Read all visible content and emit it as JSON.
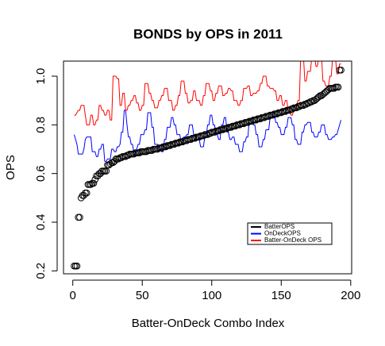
{
  "chart_data": {
    "type": "scatter",
    "title": "BONDS by OPS in 2011",
    "x_label": "Batter-OnDeck Combo Index",
    "y_label": "OPS",
    "xlim": [
      -6.68,
      200.68
    ],
    "ylim": [
      0.188,
      1.062
    ],
    "xticks": [
      0,
      50,
      100,
      150,
      200
    ],
    "yticks": [
      0.2,
      0.4,
      0.6,
      0.8,
      {
        "value": 1,
        "label": "1.0"
      }
    ],
    "legend": "bottomright",
    "x": [
      1,
      2,
      3,
      4,
      5,
      6,
      7,
      8,
      9,
      10,
      11,
      12,
      13,
      14,
      15,
      16,
      17,
      18,
      19,
      20,
      21,
      22,
      23,
      24,
      25,
      26,
      27,
      28,
      29,
      30,
      31,
      32,
      33,
      34,
      35,
      36,
      37,
      38,
      39,
      40,
      41,
      42,
      43,
      44,
      45,
      46,
      47,
      48,
      49,
      50,
      51,
      52,
      53,
      54,
      55,
      56,
      57,
      58,
      59,
      60,
      61,
      62,
      63,
      64,
      65,
      66,
      67,
      68,
      69,
      70,
      71,
      72,
      73,
      74,
      75,
      76,
      77,
      78,
      79,
      80,
      81,
      82,
      83,
      84,
      85,
      86,
      87,
      88,
      89,
      90,
      91,
      92,
      93,
      94,
      95,
      96,
      97,
      98,
      99,
      100,
      101,
      102,
      103,
      104,
      105,
      106,
      107,
      108,
      109,
      110,
      111,
      112,
      113,
      114,
      115,
      116,
      117,
      118,
      119,
      120,
      121,
      122,
      123,
      124,
      125,
      126,
      127,
      128,
      129,
      130,
      131,
      132,
      133,
      134,
      135,
      136,
      137,
      138,
      139,
      140,
      141,
      142,
      143,
      144,
      145,
      146,
      147,
      148,
      149,
      150,
      151,
      152,
      153,
      154,
      155,
      156,
      157,
      158,
      159,
      160,
      161,
      162,
      163,
      164,
      165,
      166,
      167,
      168,
      169,
      170,
      171,
      172,
      173,
      174,
      175,
      176,
      177,
      178,
      179,
      180,
      181,
      182,
      183,
      184,
      185,
      186,
      187,
      188,
      189,
      190,
      191,
      192,
      193
    ],
    "series": [
      {
        "name": "BatterOPS",
        "color": "#000000",
        "kind": "points",
        "values": [
          0.22,
          0.22,
          0.22,
          0.42,
          0.42,
          0.5,
          0.51,
          0.51,
          0.52,
          0.52,
          0.555,
          0.555,
          0.555,
          0.56,
          0.56,
          0.575,
          0.59,
          0.59,
          0.6,
          0.6,
          0.61,
          0.61,
          0.61,
          0.61,
          0.635,
          0.635,
          0.64,
          0.645,
          0.645,
          0.65,
          0.66,
          0.66,
          0.66,
          0.665,
          0.665,
          0.67,
          0.67,
          0.67,
          0.675,
          0.675,
          0.68,
          0.68,
          0.68,
          0.68,
          0.685,
          0.685,
          0.685,
          0.685,
          0.69,
          0.69,
          0.69,
          0.69,
          0.69,
          0.695,
          0.695,
          0.695,
          0.695,
          0.7,
          0.7,
          0.7,
          0.7,
          0.705,
          0.705,
          0.705,
          0.71,
          0.71,
          0.71,
          0.715,
          0.715,
          0.715,
          0.72,
          0.72,
          0.72,
          0.725,
          0.725,
          0.725,
          0.73,
          0.73,
          0.73,
          0.735,
          0.735,
          0.735,
          0.74,
          0.74,
          0.74,
          0.745,
          0.745,
          0.745,
          0.75,
          0.75,
          0.75,
          0.755,
          0.755,
          0.755,
          0.76,
          0.76,
          0.76,
          0.765,
          0.765,
          0.77,
          0.77,
          0.77,
          0.775,
          0.775,
          0.775,
          0.78,
          0.78,
          0.78,
          0.785,
          0.785,
          0.785,
          0.79,
          0.79,
          0.79,
          0.795,
          0.795,
          0.795,
          0.8,
          0.8,
          0.8,
          0.805,
          0.805,
          0.805,
          0.81,
          0.81,
          0.81,
          0.815,
          0.815,
          0.815,
          0.82,
          0.82,
          0.82,
          0.825,
          0.825,
          0.825,
          0.83,
          0.83,
          0.83,
          0.835,
          0.835,
          0.835,
          0.84,
          0.84,
          0.84,
          0.845,
          0.845,
          0.845,
          0.85,
          0.85,
          0.85,
          0.855,
          0.855,
          0.855,
          0.86,
          0.86,
          0.86,
          0.865,
          0.865,
          0.87,
          0.87,
          0.87,
          0.875,
          0.875,
          0.88,
          0.88,
          0.88,
          0.885,
          0.885,
          0.89,
          0.89,
          0.895,
          0.895,
          0.9,
          0.9,
          0.905,
          0.91,
          0.915,
          0.92,
          0.92,
          0.925,
          0.93,
          0.935,
          0.94,
          0.945,
          0.95,
          0.95,
          0.95,
          0.95,
          0.955,
          0.955,
          0.955,
          1.025,
          1.025
        ]
      },
      {
        "name": "OnDeckOPS",
        "color": "#0000ff",
        "kind": "line",
        "values": [
          0.76,
          0.74,
          0.72,
          0.68,
          0.68,
          0.68,
          0.68,
          0.7,
          0.74,
          0.75,
          0.75,
          0.75,
          0.75,
          0.69,
          0.69,
          0.69,
          0.67,
          0.67,
          0.7,
          0.7,
          0.72,
          0.72,
          0.65,
          0.65,
          0.66,
          0.66,
          0.66,
          0.7,
          0.7,
          0.69,
          0.69,
          0.71,
          0.71,
          0.72,
          0.77,
          0.77,
          0.86,
          0.86,
          0.8,
          0.75,
          0.75,
          0.72,
          0.72,
          0.68,
          0.68,
          0.7,
          0.72,
          0.72,
          0.76,
          0.76,
          0.76,
          0.78,
          0.78,
          0.85,
          0.85,
          0.85,
          0.79,
          0.79,
          0.72,
          0.72,
          0.72,
          0.7,
          0.7,
          0.69,
          0.69,
          0.74,
          0.74,
          0.79,
          0.79,
          0.79,
          0.83,
          0.83,
          0.8,
          0.8,
          0.76,
          0.76,
          0.76,
          0.73,
          0.73,
          0.75,
          0.75,
          0.76,
          0.76,
          0.8,
          0.8,
          0.8,
          0.76,
          0.76,
          0.74,
          0.74,
          0.74,
          0.71,
          0.71,
          0.71,
          0.75,
          0.75,
          0.8,
          0.8,
          0.84,
          0.84,
          0.8,
          0.8,
          0.76,
          0.76,
          0.74,
          0.74,
          0.8,
          0.8,
          0.83,
          0.83,
          0.77,
          0.77,
          0.74,
          0.74,
          0.75,
          0.75,
          0.72,
          0.72,
          0.72,
          0.69,
          0.69,
          0.69,
          0.73,
          0.73,
          0.75,
          0.75,
          0.82,
          0.82,
          0.82,
          0.8,
          0.8,
          0.76,
          0.76,
          0.71,
          0.71,
          0.71,
          0.74,
          0.74,
          0.78,
          0.78,
          0.78,
          0.83,
          0.83,
          0.85,
          0.85,
          0.81,
          0.81,
          0.79,
          0.79,
          0.76,
          0.76,
          0.76,
          0.79,
          0.79,
          0.83,
          0.83,
          0.83,
          0.8,
          0.8,
          0.74,
          0.74,
          0.72,
          0.72,
          0.72,
          0.77,
          0.77,
          0.8,
          0.8,
          0.81,
          0.81,
          0.81,
          0.77,
          0.77,
          0.75,
          0.75,
          0.75,
          0.77,
          0.77,
          0.8,
          0.8,
          0.8,
          0.76,
          0.76,
          0.74,
          0.74,
          0.74,
          0.75,
          0.75,
          0.76,
          0.76,
          0.78,
          0.8,
          0.82
        ]
      },
      {
        "name": "Batter-OnDeck OPS",
        "color": "#ff0000",
        "kind": "line",
        "values": [
          0.84,
          0.84,
          0.85,
          0.86,
          0.86,
          0.88,
          0.88,
          0.88,
          0.84,
          0.8,
          0.8,
          0.8,
          0.84,
          0.84,
          0.8,
          0.8,
          0.82,
          0.82,
          0.88,
          0.88,
          0.86,
          0.86,
          0.84,
          0.84,
          0.86,
          0.86,
          0.82,
          0.82,
          1.0,
          1.0,
          1.0,
          0.99,
          0.99,
          0.88,
          0.88,
          0.93,
          0.93,
          0.86,
          0.86,
          0.88,
          0.88,
          0.9,
          0.9,
          0.92,
          0.92,
          0.89,
          0.89,
          0.86,
          0.86,
          0.88,
          0.88,
          0.97,
          0.97,
          0.97,
          0.93,
          0.93,
          0.9,
          0.9,
          0.87,
          0.87,
          0.87,
          0.9,
          0.9,
          0.92,
          0.92,
          0.95,
          0.95,
          0.95,
          0.9,
          0.9,
          0.9,
          0.86,
          0.86,
          0.88,
          0.88,
          0.92,
          0.92,
          0.98,
          0.98,
          0.98,
          0.93,
          0.93,
          0.89,
          0.89,
          0.9,
          0.9,
          0.94,
          0.94,
          0.9,
          0.9,
          0.9,
          0.88,
          0.88,
          0.92,
          0.92,
          0.97,
          0.97,
          0.97,
          0.94,
          0.94,
          0.9,
          0.9,
          0.93,
          0.93,
          0.96,
          0.96,
          0.96,
          0.92,
          0.92,
          0.93,
          0.93,
          0.95,
          0.95,
          0.94,
          0.94,
          0.9,
          0.9,
          0.9,
          0.88,
          0.88,
          0.9,
          0.9,
          0.95,
          0.95,
          0.95,
          0.96,
          0.96,
          0.92,
          0.92,
          0.93,
          0.93,
          0.93,
          0.94,
          0.94,
          0.97,
          0.97,
          1.0,
          1.0,
          1.0,
          0.96,
          0.96,
          0.95,
          0.95,
          0.95,
          0.94,
          0.94,
          0.9,
          0.9,
          0.92,
          0.92,
          0.88,
          0.88,
          0.9,
          0.9,
          0.86,
          0.86,
          0.84,
          0.84,
          0.86,
          0.86,
          0.88,
          0.9,
          0.9,
          1.08,
          1.08,
          1.08,
          0.98,
          0.98,
          1.02,
          1.02,
          1.02,
          1.08,
          1.08,
          1.08,
          1.04,
          1.04,
          1.08,
          1.08,
          1.08,
          0.98,
          0.98,
          0.96,
          0.96,
          0.96,
          1.0,
          1.0,
          1.08,
          1.08,
          1.08,
          1.01,
          1.01,
          1.05,
          1.05
        ]
      }
    ]
  }
}
